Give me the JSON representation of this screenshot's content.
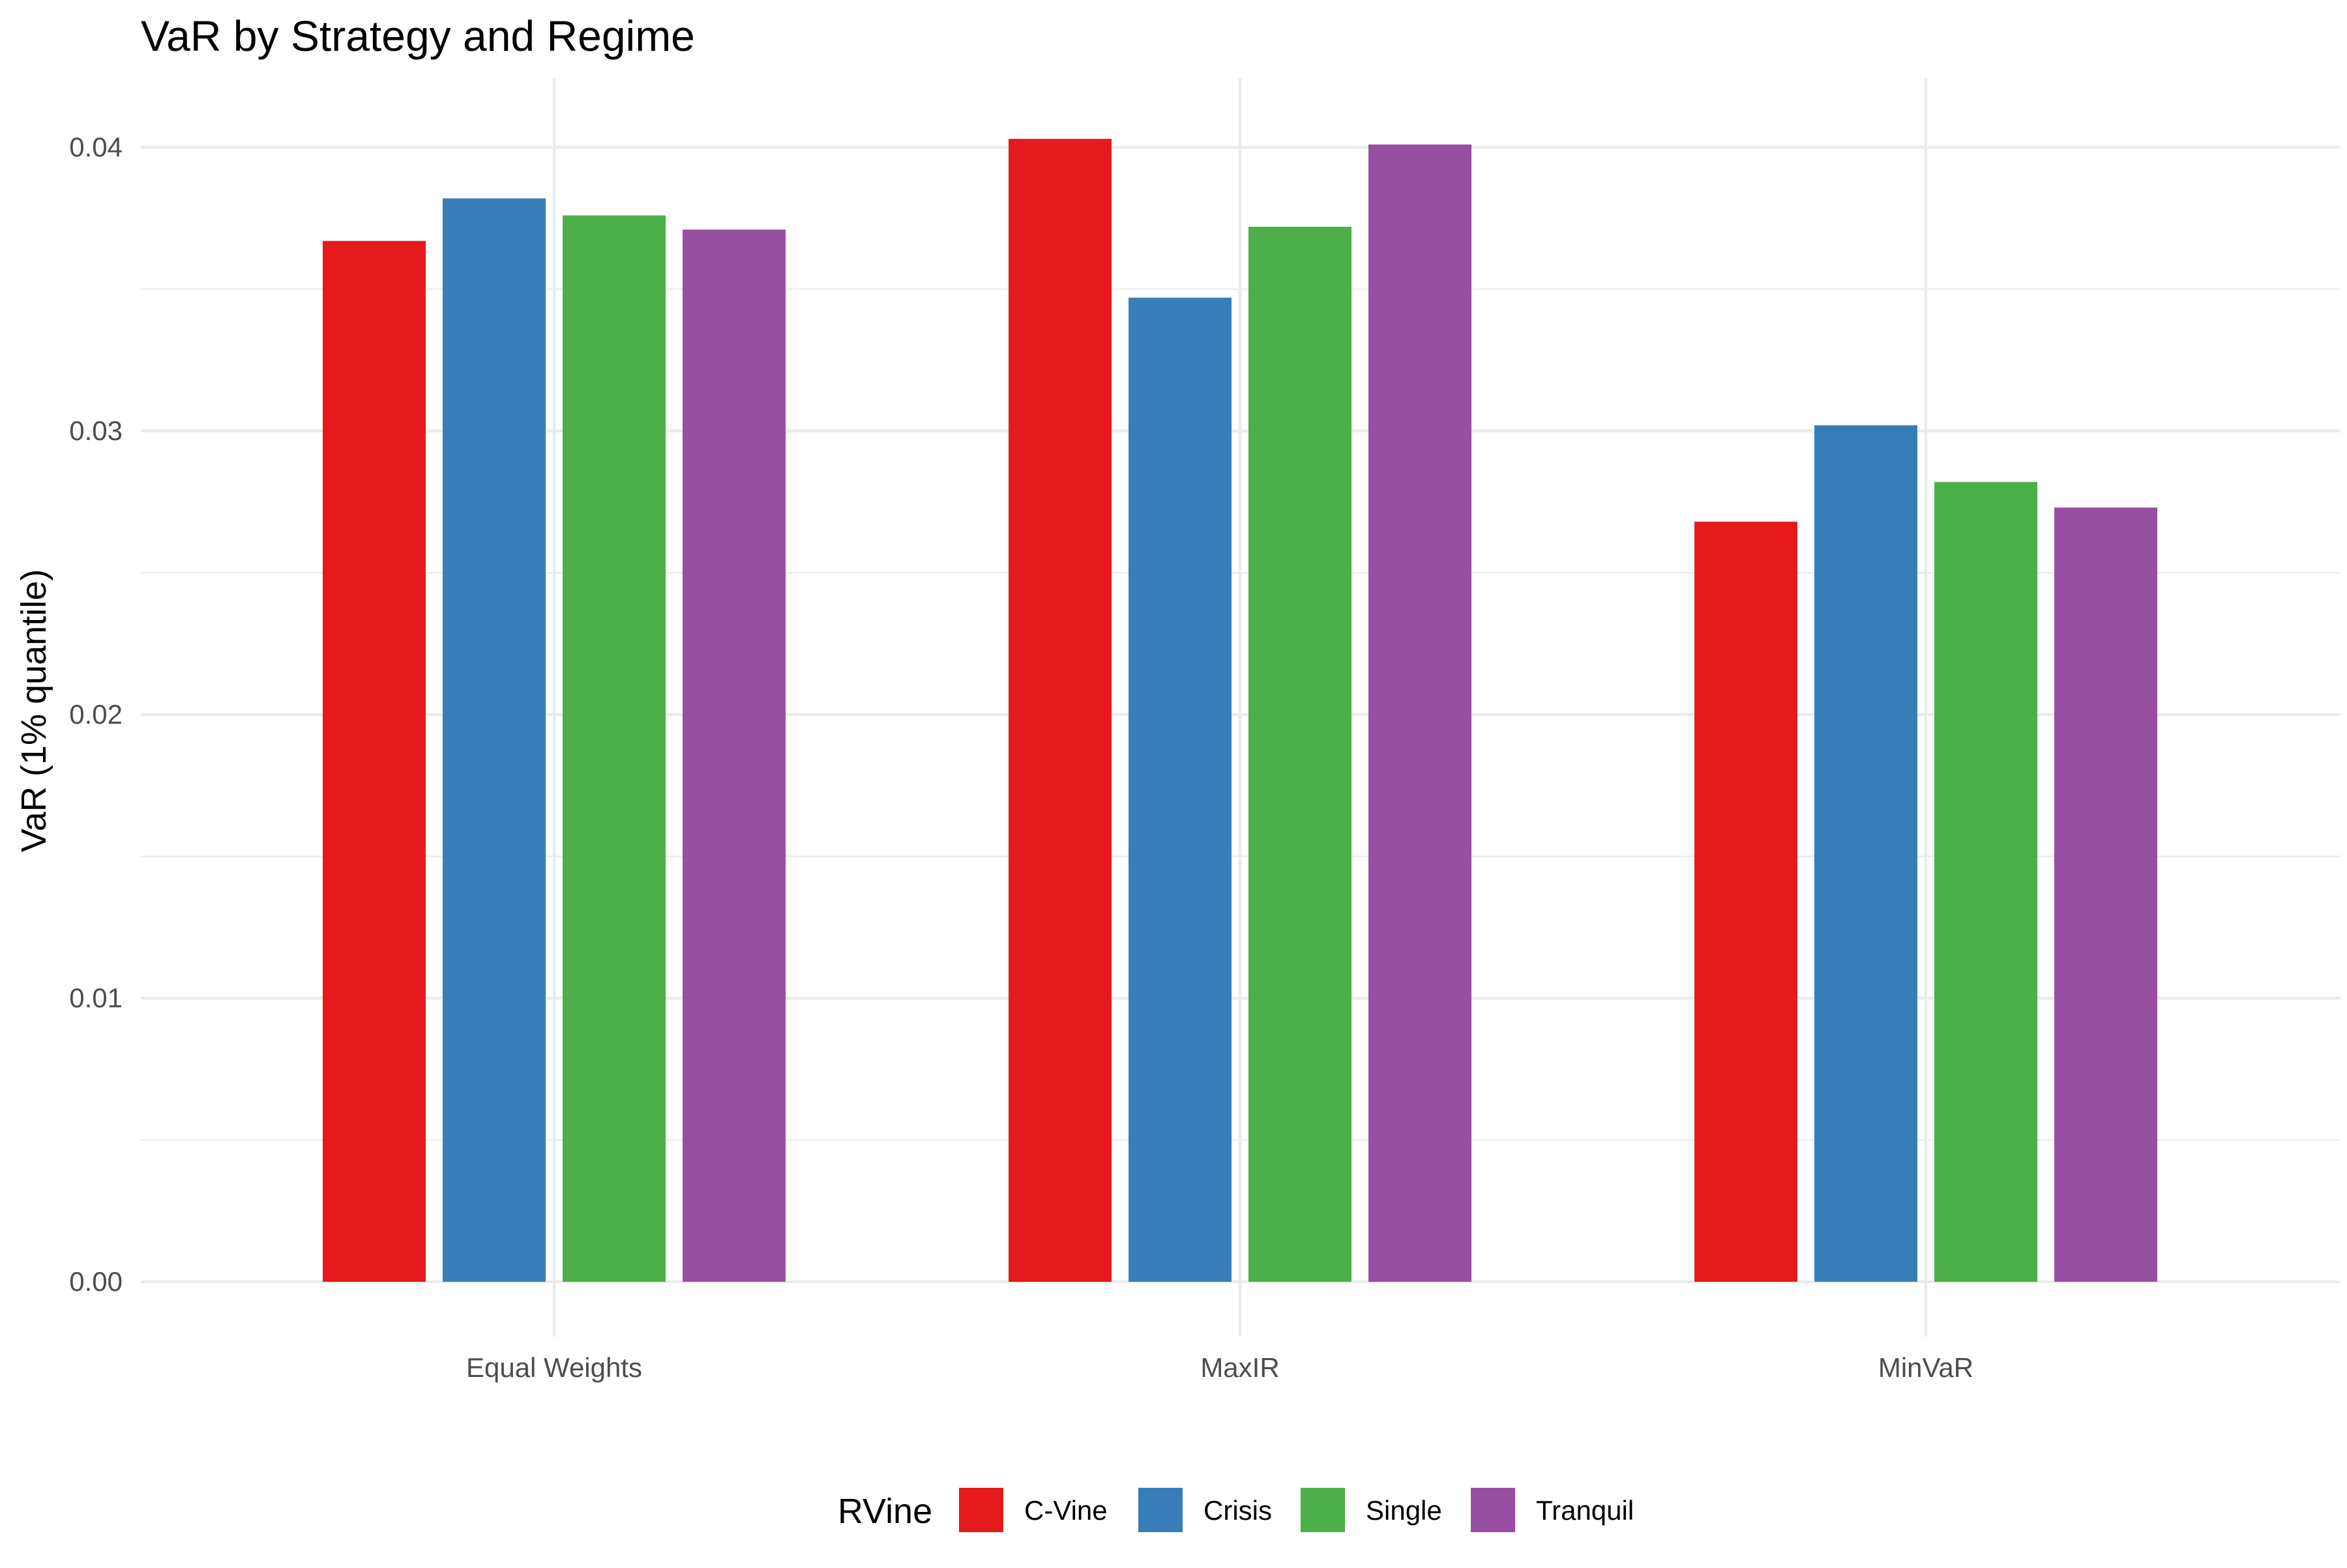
{
  "chart_data": {
    "type": "bar",
    "title": "VaR by Strategy and Regime",
    "xlabel": "",
    "ylabel": "VaR (1% quantile)",
    "categories": [
      "Equal Weights",
      "MaxIR",
      "MinVaR"
    ],
    "y_ticks": [
      "0.00",
      "0.01",
      "0.02",
      "0.03",
      "0.04"
    ],
    "y_tick_values": [
      0,
      0.01,
      0.02,
      0.03,
      0.04
    ],
    "ylim": [
      0,
      0.042
    ],
    "grid": true,
    "legend": {
      "title": "RVine",
      "position": "bottom"
    },
    "series": [
      {
        "name": "C-Vine",
        "color": "#E41A1C",
        "values": [
          0.0367,
          0.0403,
          0.0268
        ]
      },
      {
        "name": "Crisis",
        "color": "#377EB8",
        "values": [
          0.0382,
          0.0347,
          0.0302
        ]
      },
      {
        "name": "Single",
        "color": "#4DAF4A",
        "values": [
          0.0376,
          0.0372,
          0.0282
        ]
      },
      {
        "name": "Tranquil",
        "color": "#984EA3",
        "values": [
          0.0371,
          0.0401,
          0.0273
        ]
      }
    ]
  }
}
